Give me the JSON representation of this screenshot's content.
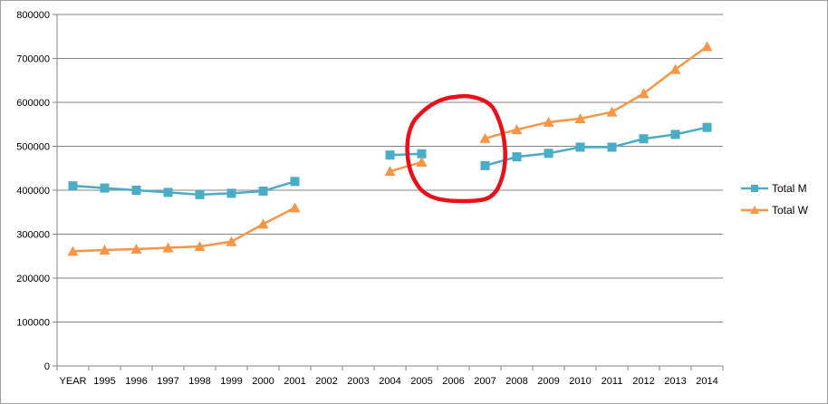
{
  "chart_data": {
    "type": "line",
    "categories": [
      "YEAR",
      "1995",
      "1996",
      "1997",
      "1998",
      "1999",
      "2000",
      "2001",
      "2002",
      "2003",
      "2004",
      "2005",
      "2006",
      "2007",
      "2008",
      "2009",
      "2010",
      "2011",
      "2012",
      "2013",
      "2014"
    ],
    "ylim": [
      0,
      800000
    ],
    "yticks": [
      0,
      100000,
      200000,
      300000,
      400000,
      500000,
      600000,
      700000,
      800000
    ],
    "grid": true,
    "legend_position": "right",
    "series": [
      {
        "name": "Total M",
        "color": "#4bacc6",
        "marker": "square",
        "values": [
          410000,
          405000,
          400000,
          395000,
          390000,
          393000,
          398000,
          420000,
          null,
          null,
          480000,
          483000,
          null,
          456000,
          476000,
          484000,
          498000,
          498000,
          517000,
          527000,
          543000
        ]
      },
      {
        "name": "Total W",
        "color": "#f79646",
        "marker": "triangle",
        "values": [
          261000,
          264000,
          266000,
          269000,
          272000,
          283000,
          323000,
          360000,
          null,
          null,
          443000,
          464000,
          null,
          518000,
          538000,
          555000,
          563000,
          578000,
          620000,
          675000,
          727000
        ]
      }
    ],
    "annotation": {
      "type": "freehand-circle",
      "color": "#e8101a"
    }
  }
}
